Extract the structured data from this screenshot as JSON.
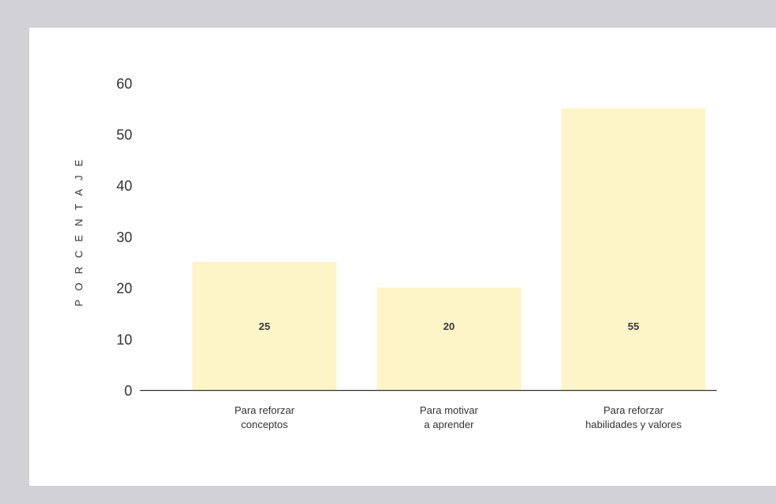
{
  "chart_data": {
    "type": "bar",
    "categories": [
      [
        "Para reforzar",
        "conceptos"
      ],
      [
        "Para motivar",
        "a aprender"
      ],
      [
        "Para reforzar",
        "habilidades y valores"
      ]
    ],
    "values": [
      25,
      20,
      55
    ],
    "data_labels": [
      "25",
      "20",
      "55"
    ],
    "ylabel": "PORCENTAJE",
    "ylim": [
      0,
      60
    ],
    "yticks": [
      "0",
      "10",
      "20",
      "30",
      "40",
      "50",
      "60"
    ],
    "grid": false,
    "legend": "none",
    "colors": {
      "bar": "#fdf4c7",
      "axis": "#333333",
      "text": "#333333",
      "background": "#d2d1d6",
      "panel": "#ffffff"
    }
  }
}
